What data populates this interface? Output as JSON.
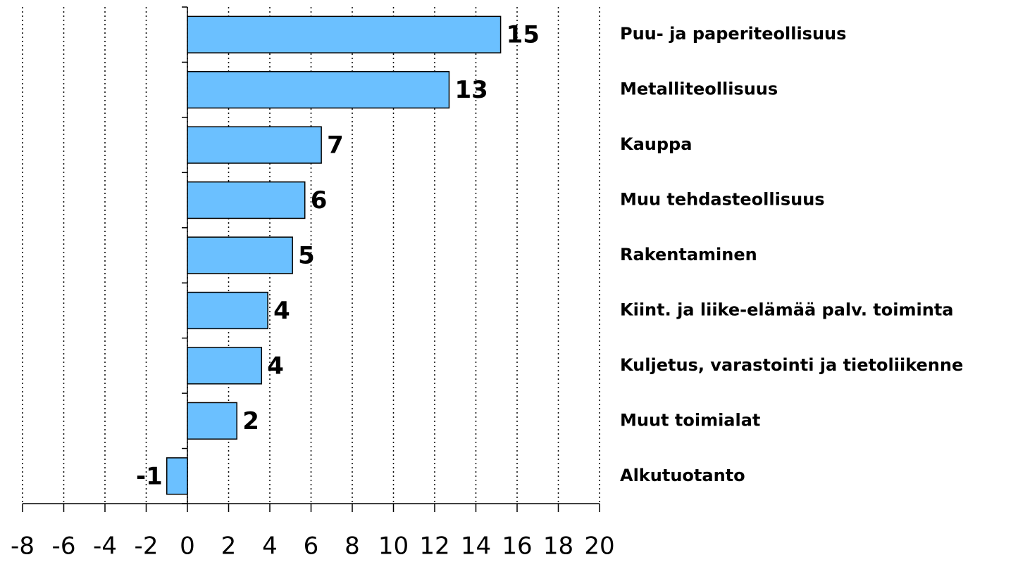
{
  "chart_data": {
    "type": "bar",
    "orientation": "horizontal",
    "categories": [
      "Puu- ja paperiteollisuus",
      "Metalliteollisuus",
      "Kauppa",
      "Muu tehdasteollisuus",
      "Rakentaminen",
      "Kiint. ja liike-elämää palv. toiminta",
      "Kuljetus, varastointi ja tietoliikenne",
      "Muut toimialat",
      "Alkutuotanto"
    ],
    "values": [
      15.2,
      12.7,
      6.5,
      5.7,
      5.1,
      3.9,
      3.6,
      2.4,
      -1.0
    ],
    "value_labels": [
      "15",
      "13",
      "7",
      "6",
      "5",
      "4",
      "4",
      "2",
      "-1"
    ],
    "color": "#6bc0ff",
    "xlim": [
      -8,
      20
    ],
    "xticks": [
      -8,
      -6,
      -4,
      -2,
      0,
      2,
      4,
      6,
      8,
      10,
      12,
      14,
      16,
      18,
      20
    ],
    "grid": true
  }
}
